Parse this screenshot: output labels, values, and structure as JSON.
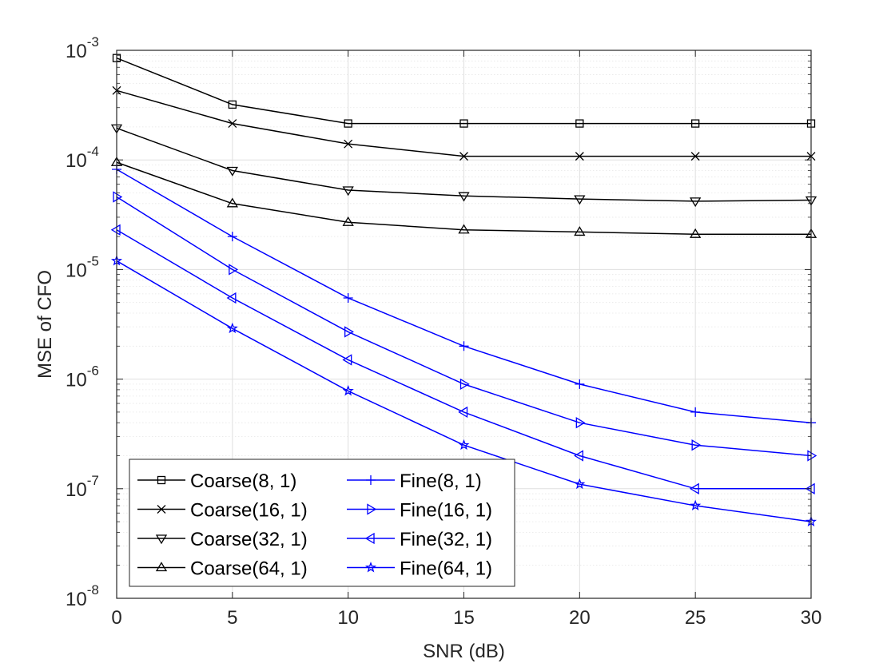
{
  "chart_data": {
    "type": "line",
    "title": "",
    "xlabel": "SNR (dB)",
    "ylabel": "MSE of CFO",
    "yscale": "log",
    "xlim": [
      0,
      30
    ],
    "ylim": [
      1e-08,
      0.001
    ],
    "grid": true,
    "legend_position": "bottom-left",
    "x": [
      0,
      5,
      10,
      15,
      20,
      25,
      30
    ],
    "x_ticks": [
      0,
      5,
      10,
      15,
      20,
      25,
      30
    ],
    "x_tick_labels": [
      "0",
      "5",
      "10",
      "15",
      "20",
      "25",
      "30"
    ],
    "y_ticks": [
      {
        "value": 0.001,
        "base": "10",
        "exp": "-3"
      },
      {
        "value": 0.0001,
        "base": "10",
        "exp": "-4"
      },
      {
        "value": 1e-05,
        "base": "10",
        "exp": "-5"
      },
      {
        "value": 1e-06,
        "base": "10",
        "exp": "-6"
      },
      {
        "value": 1e-07,
        "base": "10",
        "exp": "-7"
      },
      {
        "value": 1e-08,
        "base": "10",
        "exp": "-8"
      }
    ],
    "series": [
      {
        "name": "Coarse(8, 1)",
        "color": "#000000",
        "marker": "square",
        "values": [
          0.00085,
          0.00032,
          0.000215,
          0.000215,
          0.000215,
          0.000215,
          0.000215
        ]
      },
      {
        "name": "Coarse(16, 1)",
        "color": "#000000",
        "marker": "x",
        "values": [
          0.00043,
          0.000215,
          0.00014,
          0.000108,
          0.000108,
          0.000108,
          0.000108
        ]
      },
      {
        "name": "Coarse(32, 1)",
        "color": "#000000",
        "marker": "triangle-down",
        "values": [
          0.000195,
          8e-05,
          5.3e-05,
          4.7e-05,
          4.4e-05,
          4.2e-05,
          4.3e-05
        ]
      },
      {
        "name": "Coarse(64, 1)",
        "color": "#000000",
        "marker": "triangle-up",
        "values": [
          9.5e-05,
          4e-05,
          2.7e-05,
          2.3e-05,
          2.2e-05,
          2.1e-05,
          2.1e-05
        ]
      },
      {
        "name": "Fine(8, 1)",
        "color": "#0000ff",
        "marker": "plus",
        "values": [
          8.2e-05,
          2e-05,
          5.5e-06,
          2e-06,
          9e-07,
          5e-07,
          4e-07
        ]
      },
      {
        "name": "Fine(16, 1)",
        "color": "#0000ff",
        "marker": "triangle-right",
        "values": [
          4.6e-05,
          1e-05,
          2.7e-06,
          9e-07,
          4e-07,
          2.5e-07,
          2e-07
        ]
      },
      {
        "name": "Fine(32, 1)",
        "color": "#0000ff",
        "marker": "triangle-left",
        "values": [
          2.3e-05,
          5.5e-06,
          1.5e-06,
          5e-07,
          2e-07,
          1e-07,
          1e-07
        ]
      },
      {
        "name": "Fine(64, 1)",
        "color": "#0000ff",
        "marker": "star",
        "values": [
          1.2e-05,
          2.9e-06,
          7.8e-07,
          2.5e-07,
          1.1e-07,
          7e-08,
          5e-08
        ]
      }
    ]
  }
}
